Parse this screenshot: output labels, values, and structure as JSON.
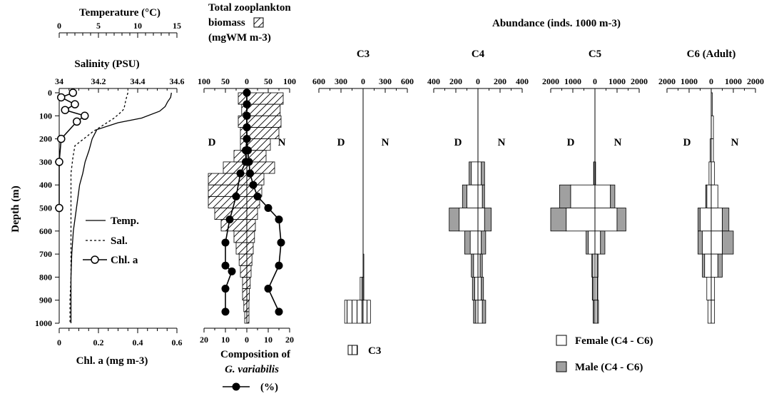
{
  "panel_a": {
    "temp_axis_label": "Temperature (°C)",
    "sal_axis_label": "Salinity (PSU)",
    "chl_axis_label": "Chl. a (mg m-3)",
    "depth_label": "Depth (m)",
    "legend": [
      "Temp.",
      "Sal.",
      "Chl. a"
    ]
  },
  "panel_b": {
    "title_lines": [
      "Total zooplankton",
      "biomass",
      "(mgWM m-3)"
    ],
    "comp_lines": [
      "Composition of",
      "G. variabilis",
      "(%)"
    ]
  },
  "stage_panels_header": "Abundance (inds. 1000 m-3)",
  "day_label": "D",
  "night_label": "N",
  "legend_right": {
    "c3": "C3",
    "female": "Female (C4 - C6)",
    "male": "Male (C4 - C6)"
  },
  "chart_data": [
    {
      "type": "line",
      "panel": "hydrography",
      "ylabel": "Depth (m)",
      "ylim": [
        1000,
        0
      ],
      "yticks": [
        0,
        100,
        200,
        300,
        400,
        500,
        600,
        700,
        800,
        900,
        1000
      ],
      "axes": {
        "temperature": {
          "label": "Temperature (°C)",
          "lim": [
            0,
            15
          ],
          "ticks": [
            0,
            5,
            10,
            15
          ]
        },
        "salinity": {
          "label": "Salinity (PSU)",
          "lim": [
            34,
            34.6
          ],
          "ticks": [
            "34",
            "34.2",
            "34.4",
            "34.6"
          ]
        },
        "chl": {
          "label": "Chl. a (mg m-3)",
          "lim": [
            0,
            0.6
          ],
          "ticks": [
            "0",
            "0.2",
            "0.4",
            "0.6"
          ]
        }
      },
      "series": [
        {
          "name": "Temp.",
          "x": [
            14.3,
            14.2,
            13.8,
            13.5,
            12.8,
            10.5,
            7.5,
            4.8,
            4.2,
            3.8,
            3.3,
            3.0,
            2.6,
            2.4,
            2.2,
            2.0,
            1.8,
            1.7,
            1.6,
            1.5,
            1.5,
            1.5
          ],
          "y": [
            0,
            20,
            40,
            60,
            80,
            110,
            130,
            160,
            200,
            250,
            300,
            350,
            400,
            450,
            500,
            550,
            600,
            650,
            700,
            800,
            900,
            1000
          ]
        },
        {
          "name": "Sal.",
          "x": [
            34.35,
            34.34,
            34.33,
            34.32,
            34.28,
            34.17,
            34.08,
            34.07,
            34.06,
            34.06,
            34.06,
            34.06,
            34.06,
            34.055,
            34.055
          ],
          "y": [
            0,
            30,
            70,
            80,
            110,
            170,
            230,
            280,
            350,
            450,
            550,
            700,
            800,
            900,
            1000
          ]
        },
        {
          "name": "Chl. a",
          "x": [
            0.07,
            0.01,
            0.08,
            0.03,
            0.13,
            0.09,
            0.01,
            0.0,
            0.0
          ],
          "y": [
            0,
            20,
            50,
            75,
            100,
            125,
            200,
            300,
            500
          ]
        }
      ]
    },
    {
      "type": "bar",
      "panel": "total zooplankton biomass",
      "title": "Total zooplankton biomass (mgWM m-3)",
      "xlim": [
        -100,
        100
      ],
      "xticks": [
        "100",
        "50",
        "0",
        "50",
        "100"
      ],
      "depth_bins": [
        0,
        50,
        100,
        150,
        200,
        250,
        300,
        350,
        400,
        450,
        500,
        550,
        600,
        650,
        700,
        750,
        800,
        850,
        900,
        950,
        1000
      ],
      "series": [
        {
          "name": "D",
          "values": [
            20,
            12,
            20,
            15,
            15,
            30,
            55,
            90,
            90,
            90,
            75,
            60,
            30,
            25,
            18,
            15,
            10,
            10,
            7,
            5
          ]
        },
        {
          "name": "N",
          "values": [
            85,
            78,
            80,
            75,
            55,
            45,
            65,
            40,
            35,
            30,
            25,
            20,
            18,
            15,
            12,
            10,
            8,
            6,
            5,
            5
          ]
        }
      ]
    },
    {
      "type": "line",
      "panel": "composition of G. variabilis",
      "xlim": [
        -20,
        20
      ],
      "xticks": [
        "20",
        "10",
        "0",
        "10",
        "20"
      ],
      "series": [
        {
          "name": "D",
          "x": [
            0,
            0,
            0,
            0,
            0,
            0.5,
            0.5,
            3,
            5,
            8,
            10,
            10,
            7,
            10,
            10
          ],
          "y": [
            0,
            50,
            100,
            150,
            200,
            250,
            300,
            350,
            450,
            550,
            650,
            750,
            775,
            850,
            950
          ]
        },
        {
          "name": "N",
          "x": [
            0,
            0,
            0,
            0,
            0,
            0.5,
            1,
            1.5,
            3,
            5,
            10,
            15,
            16,
            15,
            10,
            15
          ],
          "y": [
            0,
            50,
            100,
            150,
            200,
            250,
            300,
            350,
            400,
            450,
            500,
            550,
            650,
            750,
            850,
            950
          ]
        }
      ]
    },
    {
      "type": "bar",
      "panel": "C3",
      "title": "C3",
      "xlim": [
        -600,
        600
      ],
      "xticks": [
        "600",
        "300",
        "0",
        "300",
        "600"
      ],
      "depth_bins": [
        0,
        700,
        800,
        900,
        1000
      ],
      "series": [
        {
          "name": "D",
          "values": [
            0,
            0,
            40,
            250
          ]
        },
        {
          "name": "N",
          "values": [
            0,
            10,
            10,
            100
          ]
        }
      ]
    },
    {
      "type": "bar",
      "panel": "C4",
      "title": "C4",
      "xlim": [
        -400,
        400
      ],
      "xticks": [
        "400",
        "200",
        "0",
        "200",
        "400"
      ],
      "depth_bins": [
        0,
        300,
        400,
        500,
        600,
        700,
        800,
        900,
        1000
      ],
      "series": [
        {
          "name": "D Female",
          "values": [
            0,
            60,
            100,
            170,
            70,
            40,
            30,
            20
          ]
        },
        {
          "name": "D Male",
          "values": [
            0,
            20,
            40,
            90,
            50,
            20,
            20,
            20
          ]
        },
        {
          "name": "N Female",
          "values": [
            0,
            30,
            40,
            60,
            30,
            20,
            30,
            40
          ]
        },
        {
          "name": "N Male",
          "values": [
            0,
            30,
            20,
            60,
            40,
            20,
            20,
            30
          ]
        }
      ]
    },
    {
      "type": "bar",
      "panel": "C5",
      "title": "C5",
      "xlim": [
        -2000,
        2000
      ],
      "xticks": [
        "2000",
        "1000",
        "0",
        "1000",
        "2000"
      ],
      "depth_bins": [
        0,
        300,
        400,
        500,
        600,
        700,
        800,
        900,
        1000
      ],
      "series": [
        {
          "name": "D Female",
          "values": [
            0,
            50,
            1100,
            1300,
            300,
            100,
            80,
            60
          ]
        },
        {
          "name": "D Male",
          "values": [
            0,
            10,
            500,
            700,
            100,
            40,
            40,
            20
          ]
        },
        {
          "name": "N Female",
          "values": [
            0,
            30,
            700,
            1000,
            250,
            100,
            100,
            100
          ]
        },
        {
          "name": "N Male",
          "values": [
            0,
            0,
            200,
            400,
            200,
            40,
            30,
            60
          ]
        }
      ]
    },
    {
      "type": "bar",
      "panel": "C6 (Adult)",
      "title": "C6 (Adult)",
      "xlim": [
        -2000,
        2000
      ],
      "xticks": [
        "2000",
        "1000",
        "0",
        "1000",
        "2000"
      ],
      "depth_bins": [
        0,
        100,
        200,
        300,
        400,
        500,
        600,
        700,
        800,
        900,
        1000
      ],
      "series": [
        {
          "name": "D Female",
          "values": [
            0,
            0,
            50,
            100,
            200,
            500,
            400,
            300,
            200,
            150
          ]
        },
        {
          "name": "D Male",
          "values": [
            0,
            0,
            0,
            0,
            50,
            100,
            200,
            100,
            0,
            0
          ]
        },
        {
          "name": "N Female",
          "values": [
            50,
            100,
            100,
            150,
            300,
            500,
            500,
            300,
            150,
            150
          ]
        },
        {
          "name": "N Male",
          "values": [
            0,
            0,
            0,
            0,
            0,
            300,
            500,
            200,
            0,
            0
          ]
        }
      ]
    }
  ]
}
